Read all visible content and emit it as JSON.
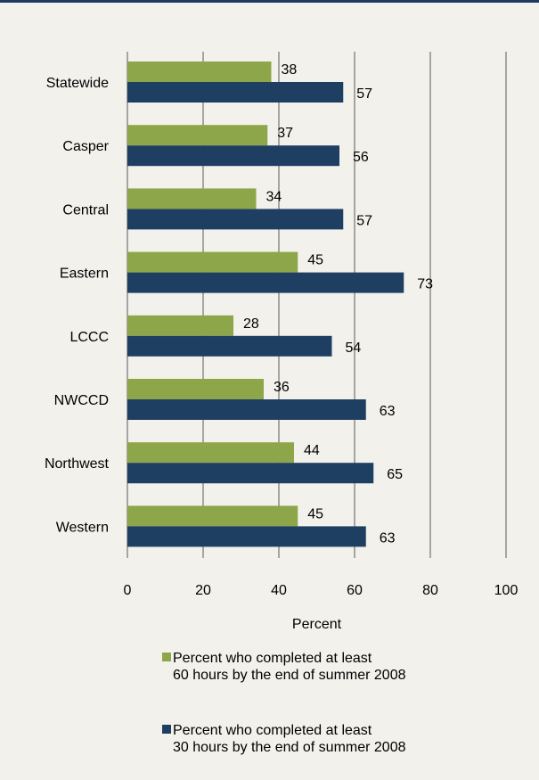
{
  "chart_data": {
    "type": "bar",
    "orientation": "horizontal",
    "categories": [
      "Statewide",
      "Casper",
      "Central",
      "Eastern",
      "LCCC",
      "NWCCD",
      "Northwest",
      "Western"
    ],
    "series": [
      {
        "name": "Percent who completed at least 60 hours by the end of summer 2008",
        "legend_lines": [
          "Percent who completed at least",
          "60 hours by the end of summer 2008"
        ],
        "color": "#8ea64a",
        "values": [
          38,
          37,
          34,
          45,
          28,
          36,
          44,
          45
        ]
      },
      {
        "name": "Percent who completed at least 30 hours by the end of summer 2008",
        "legend_lines": [
          "Percent who completed at least",
          "30 hours by the end of summer 2008"
        ],
        "color": "#1f3f62",
        "values": [
          57,
          56,
          57,
          73,
          54,
          63,
          65,
          63
        ]
      }
    ],
    "xlabel": "Percent",
    "xlim": [
      0,
      100
    ],
    "xticks": [
      "0",
      "20",
      "40",
      "60",
      "80",
      "100"
    ],
    "xtick_values": [
      0,
      20,
      40,
      60,
      80,
      100
    ],
    "grid": "vertical",
    "grid_color": "#595959",
    "background_color": "#f2f1ec",
    "legend_position": "bottom"
  }
}
